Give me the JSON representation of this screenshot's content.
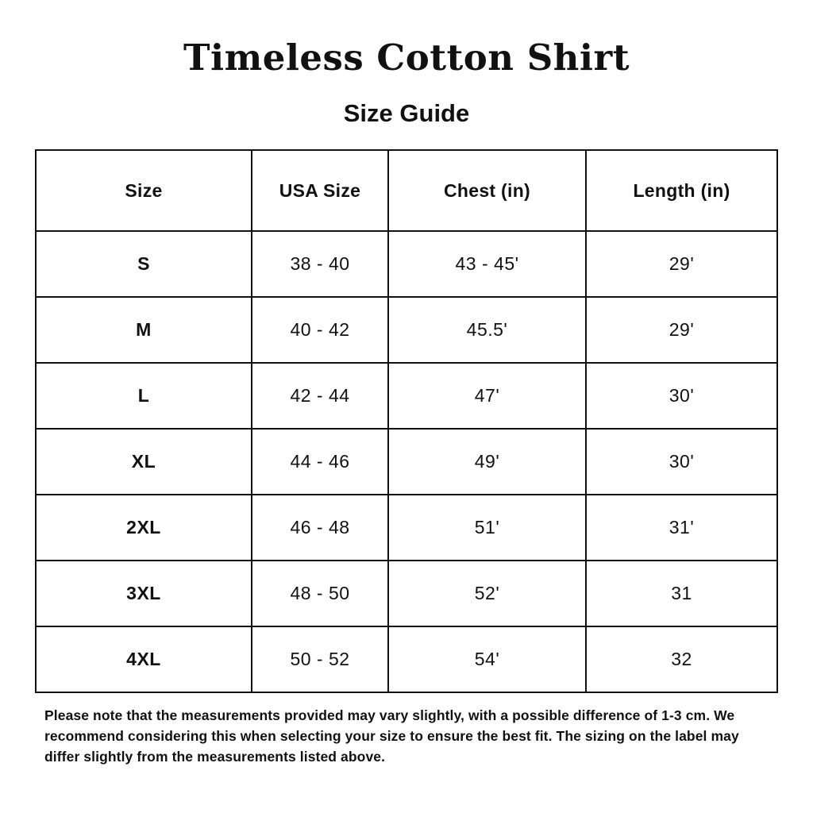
{
  "page": {
    "title": "Timeless Cotton Shirt",
    "subtitle": "Size Guide"
  },
  "colors": {
    "background": "#ffffff",
    "text": "#111111",
    "table_border": "#111111"
  },
  "table": {
    "headers": [
      "Size",
      "USA Size",
      "Chest (in)",
      "Length (in)"
    ],
    "rows": [
      {
        "size": "S",
        "usa": "38 - 40",
        "chest": "43 - 45'",
        "length": "29'"
      },
      {
        "size": "M",
        "usa": "40 - 42",
        "chest": "45.5'",
        "length": "29'"
      },
      {
        "size": "L",
        "usa": "42 - 44",
        "chest": "47'",
        "length": "30'"
      },
      {
        "size": "XL",
        "usa": "44 - 46",
        "chest": "49'",
        "length": "30'"
      },
      {
        "size": "2XL",
        "usa": "46 - 48",
        "chest": "51'",
        "length": "31'"
      },
      {
        "size": "3XL",
        "usa": "48 - 50",
        "chest": "52'",
        "length": "31"
      },
      {
        "size": "4XL",
        "usa": "50 - 52",
        "chest": "54'",
        "length": "32"
      }
    ]
  },
  "note": "Please note that the measurements provided may vary slightly, with a possible difference of 1-3 cm. We recommend considering this when selecting your size to ensure the best fit. The sizing on the label may differ slightly from the measurements listed above."
}
